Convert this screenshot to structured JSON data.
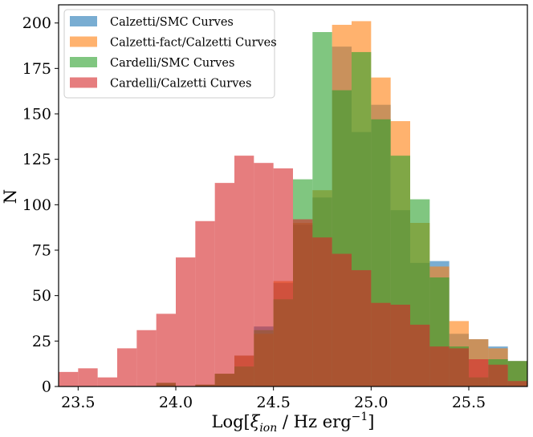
{
  "chart_data": {
    "type": "histogram",
    "xlabel": "Log[ξ_ion / Hz erg⁻¹]",
    "xlabel_parts": {
      "prefix": "Log[",
      "symbol": "ξ",
      "subscript": "ion",
      "middle": " / Hz erg",
      "superscript": "−1",
      "suffix": "]"
    },
    "ylabel": "N",
    "xlim": [
      23.4,
      25.8
    ],
    "ylim": [
      0,
      210
    ],
    "xticks": [
      "23.5",
      "24.0",
      "24.5",
      "25.0",
      "25.5"
    ],
    "yticks": [
      "0",
      "25",
      "50",
      "75",
      "100",
      "125",
      "150",
      "175",
      "200"
    ],
    "legend_position": "top-left",
    "grid": false,
    "bin_edges": [
      23.4,
      23.5,
      23.6,
      23.7,
      23.8,
      23.9,
      24.0,
      24.1,
      24.2,
      24.3,
      24.4,
      24.5,
      24.6,
      24.7,
      24.8,
      24.9,
      25.0,
      25.1,
      25.2,
      25.3,
      25.4,
      25.5,
      25.6,
      25.7,
      25.8
    ],
    "series": [
      {
        "name": "Calzetti/SMC Curves",
        "color": "#1f77b4",
        "values": [
          0,
          0,
          0,
          0,
          0,
          2,
          0,
          1,
          7,
          17,
          33,
          57,
          89,
          104,
          187,
          140,
          155,
          97,
          68,
          69,
          29,
          26,
          22,
          14
        ]
      },
      {
        "name": "Calzetti-fact/Calzetti Curves",
        "color": "#ff7f0e",
        "values": [
          0,
          0,
          0,
          0,
          0,
          2,
          0,
          1,
          7,
          17,
          29,
          58,
          90,
          108,
          199,
          201,
          170,
          146,
          90,
          66,
          36,
          26,
          21,
          14
        ]
      },
      {
        "name": "Cardelli/SMC Curves",
        "color": "#2ca02c",
        "values": [
          0,
          0,
          0,
          0,
          0,
          2,
          0,
          1,
          7,
          11,
          31,
          48,
          114,
          195,
          163,
          184,
          147,
          127,
          103,
          60,
          22,
          5,
          15,
          14
        ]
      },
      {
        "name": "Cardelli/Calzetti Curves",
        "color": "#d62728",
        "values": [
          8,
          10,
          5,
          21,
          31,
          40,
          71,
          91,
          112,
          127,
          123,
          120,
          92,
          82,
          73,
          64,
          46,
          45,
          34,
          22,
          21,
          15,
          12,
          3
        ]
      }
    ]
  }
}
